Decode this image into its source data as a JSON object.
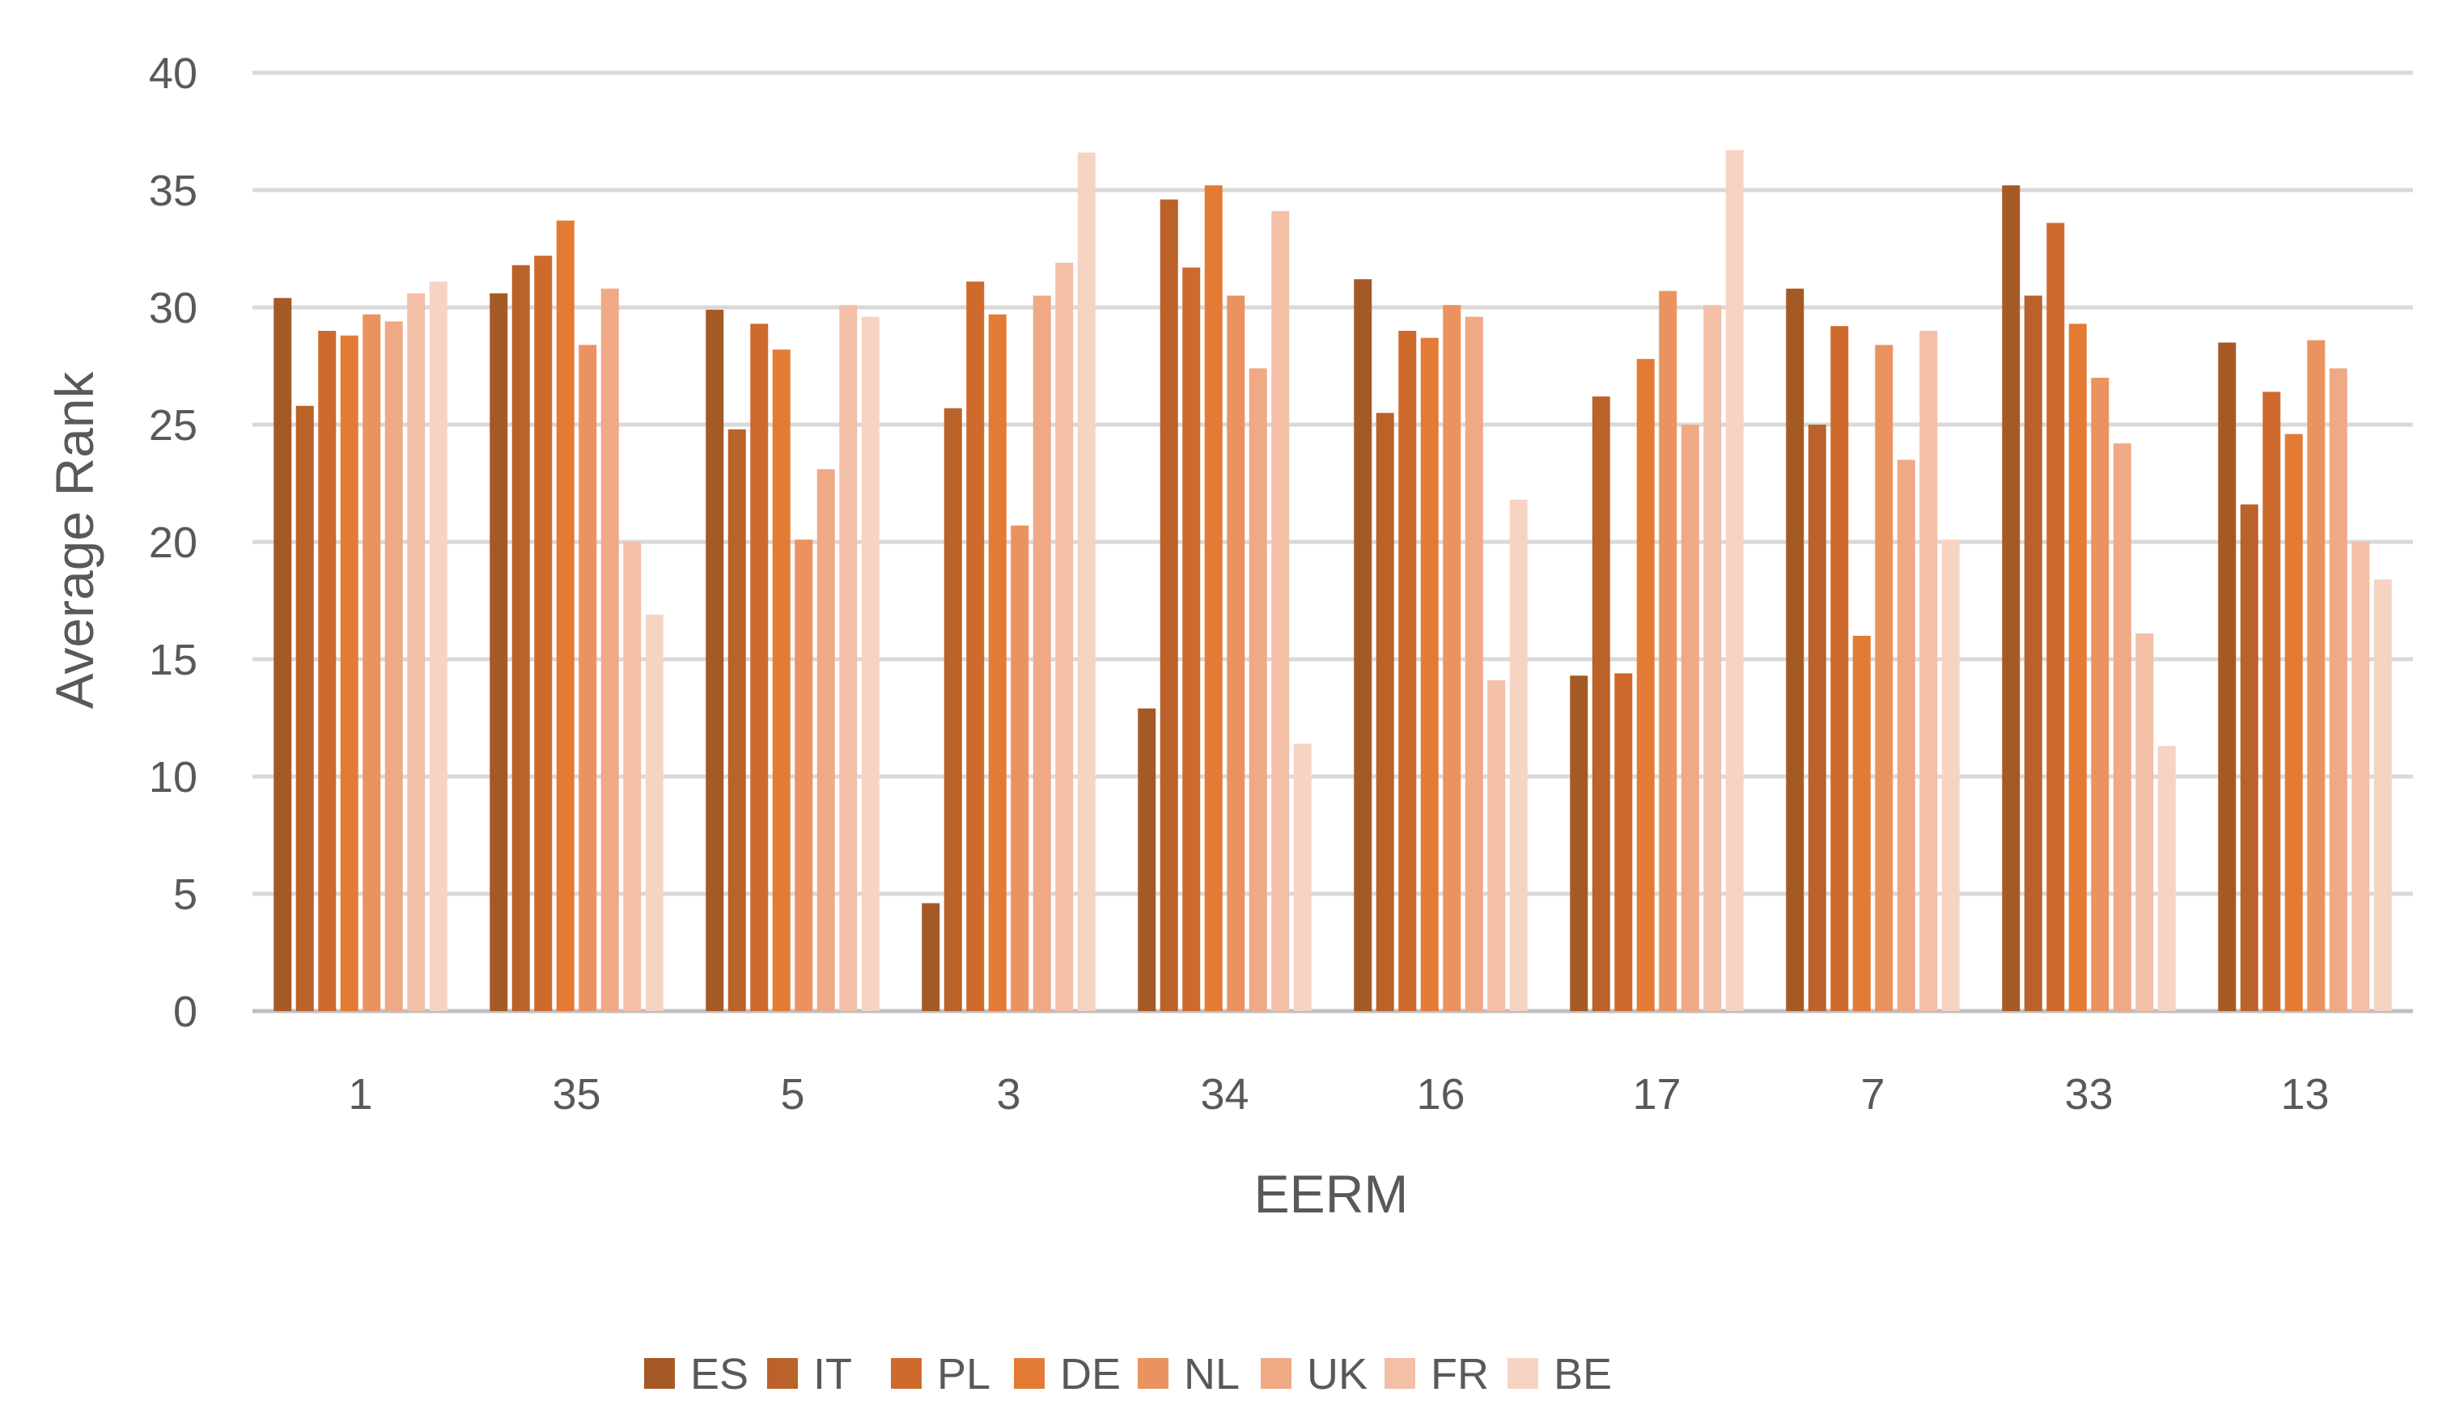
{
  "chart_data": {
    "type": "bar",
    "title": "",
    "xlabel": "EERM",
    "ylabel": "Average Rank",
    "ylim": [
      0,
      40
    ],
    "yticks": [
      0,
      5,
      10,
      15,
      20,
      25,
      30,
      35,
      40
    ],
    "grid": true,
    "legend_position": "bottom",
    "categories": [
      "1",
      "35",
      "5",
      "3",
      "34",
      "16",
      "17",
      "7",
      "33",
      "13"
    ],
    "series": [
      {
        "name": "ES",
        "color": "#A55A26",
        "values": [
          30.4,
          30.6,
          29.9,
          4.6,
          12.9,
          31.2,
          14.3,
          30.8,
          35.2,
          28.5
        ]
      },
      {
        "name": "IT",
        "color": "#BA622A",
        "values": [
          25.8,
          31.8,
          24.8,
          25.7,
          34.6,
          25.5,
          26.2,
          25.0,
          30.5,
          21.6
        ]
      },
      {
        "name": "PL",
        "color": "#CF6A2D",
        "values": [
          29.0,
          32.2,
          29.3,
          31.1,
          31.7,
          29.0,
          14.4,
          29.2,
          33.6,
          26.4
        ]
      },
      {
        "name": "DE",
        "color": "#E47B35",
        "values": [
          28.8,
          33.7,
          28.2,
          29.7,
          35.2,
          28.7,
          27.8,
          16.0,
          29.3,
          24.6
        ]
      },
      {
        "name": "NL",
        "color": "#EB9360",
        "values": [
          29.7,
          28.4,
          20.1,
          20.7,
          30.5,
          30.1,
          30.7,
          28.4,
          27.0,
          28.6
        ]
      },
      {
        "name": "UK",
        "color": "#EFA985",
        "values": [
          29.4,
          30.8,
          23.1,
          30.5,
          27.4,
          29.6,
          25.0,
          23.5,
          24.2,
          27.4
        ]
      },
      {
        "name": "FR",
        "color": "#F3BFA6",
        "values": [
          30.6,
          20.0,
          30.1,
          31.9,
          34.1,
          14.1,
          30.1,
          29.0,
          16.1,
          20.0
        ]
      },
      {
        "name": "BE",
        "color": "#F7D3C3",
        "values": [
          31.1,
          16.9,
          29.6,
          36.6,
          11.4,
          21.8,
          36.7,
          20.1,
          11.3,
          18.4
        ]
      }
    ]
  }
}
